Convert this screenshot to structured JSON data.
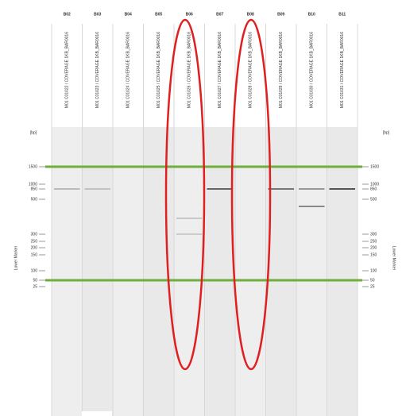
{
  "gel": {
    "lanes": [
      {
        "id": "B02",
        "sample": "M01 C01022 / COVERAGE 1KB_BAR0016"
      },
      {
        "id": "B03",
        "sample": "M01 C01023 / COVERAGE 1KB_BAR0016"
      },
      {
        "id": "B04",
        "sample": "M01 C01024 / COVERAGE 1KB_BAR0016"
      },
      {
        "id": "B05",
        "sample": "M01 C01025 / COVERAGE 1KB_BAR0016"
      },
      {
        "id": "B06",
        "sample": "M01 C01026 / COVERAGE 1KB_BAR0016"
      },
      {
        "id": "B07",
        "sample": "M01 C01027 / COVERAGE 1KB_BAR0016"
      },
      {
        "id": "B08",
        "sample": "M01 C01028 / COVERAGE 1KB_BAR0016"
      },
      {
        "id": "B09",
        "sample": "M01 C01029 / COVERAGE 1KB_BAR0016"
      },
      {
        "id": "B10",
        "sample": "M01 C01030 / COVERAGE 1KB_BAR0016"
      },
      {
        "id": "B11",
        "sample": "M01 C01031 / COVERAGE 1KB_BAR0016"
      }
    ],
    "unit": "[bp]",
    "ladder": [
      "1500",
      "1000",
      "850",
      "500",
      "300",
      "250",
      "200",
      "150",
      "100",
      "50",
      "25"
    ],
    "marker_label": "Lower Marker"
  }
}
